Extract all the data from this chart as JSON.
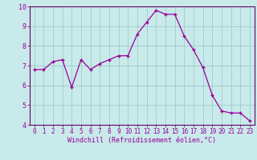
{
  "x": [
    0,
    1,
    2,
    3,
    4,
    5,
    6,
    7,
    8,
    9,
    10,
    11,
    12,
    13,
    14,
    15,
    16,
    17,
    18,
    19,
    20,
    21,
    22,
    23
  ],
  "y": [
    6.8,
    6.8,
    7.2,
    7.3,
    5.9,
    7.3,
    6.8,
    7.1,
    7.3,
    7.5,
    7.5,
    8.6,
    9.2,
    9.8,
    9.6,
    9.6,
    8.5,
    7.8,
    6.9,
    5.5,
    4.7,
    4.6,
    4.6,
    4.2
  ],
  "line_color": "#990099",
  "marker": "+",
  "bg_color": "#c8eaea",
  "grid_color": "#a0cccc",
  "xlabel": "Windchill (Refroidissement éolien,°C)",
  "ylim": [
    4,
    10
  ],
  "xlim_min": -0.5,
  "xlim_max": 23.5,
  "yticks": [
    4,
    5,
    6,
    7,
    8,
    9,
    10
  ],
  "xticks": [
    0,
    1,
    2,
    3,
    4,
    5,
    6,
    7,
    8,
    9,
    10,
    11,
    12,
    13,
    14,
    15,
    16,
    17,
    18,
    19,
    20,
    21,
    22,
    23
  ],
  "xtick_labels": [
    "0",
    "1",
    "2",
    "3",
    "4",
    "5",
    "6",
    "7",
    "8",
    "9",
    "10",
    "11",
    "12",
    "13",
    "14",
    "15",
    "16",
    "17",
    "18",
    "19",
    "20",
    "21",
    "22",
    "23"
  ],
  "spine_color": "#660066",
  "tick_color": "#990099",
  "label_color": "#990099",
  "font_family": "monospace",
  "tick_fontsize": 5.5,
  "xlabel_fontsize": 6.0
}
